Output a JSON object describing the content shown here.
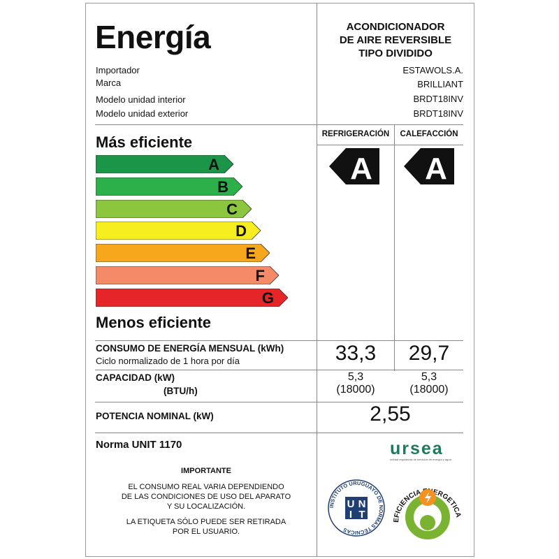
{
  "header": {
    "title": "Energía",
    "product": [
      "ACONDICIONADOR",
      "DE AIRE REVERSIBLE",
      "TIPO DIVIDIDO"
    ]
  },
  "info": [
    {
      "label": "Importador",
      "value": "ESTAWOLS.A."
    },
    {
      "label": "Marca",
      "value": "BRILLIANT"
    },
    {
      "label": "Modelo unidad interior",
      "value": "BRDT18INV"
    },
    {
      "label": "Modelo unidad exterior",
      "value": "BRDT18INV"
    }
  ],
  "scale": {
    "top_label": "Más eficiente",
    "bottom_label": "Menos eficiente",
    "classes": [
      {
        "letter": "A",
        "color": "#1b9547"
      },
      {
        "letter": "B",
        "color": "#2bb04a"
      },
      {
        "letter": "C",
        "color": "#8cc63f"
      },
      {
        "letter": "D",
        "color": "#f6ee1f"
      },
      {
        "letter": "E",
        "color": "#f6a71c"
      },
      {
        "letter": "F",
        "color": "#f48a68"
      },
      {
        "letter": "G",
        "color": "#e52527"
      }
    ]
  },
  "columns": {
    "cooling": "REFRIGERACIÓN",
    "heating": "CALEFACCIÓN"
  },
  "rating": {
    "cooling": "A",
    "heating": "A"
  },
  "consumption": {
    "label": "CONSUMO DE ENERGÍA MENSUAL  (kWh)",
    "sublabel": "Ciclo normalizado de 1 hora por día",
    "cooling": "33,3",
    "heating": "29,7"
  },
  "capacity": {
    "label": "CAPACIDAD   (kW)",
    "sublabel": "(BTU/h)",
    "cooling_kw": "5,3",
    "cooling_btu": "(18000)",
    "heating_kw": "5,3",
    "heating_btu": "(18000)"
  },
  "power": {
    "label": "POTENCIA NOMINAL  (kW)",
    "value": "2,55"
  },
  "norm": "Norma UNIT 1170",
  "important": {
    "title": "IMPORTANTE",
    "lines1": [
      "EL CONSUMO REAL VARIA DEPENDIENDO",
      "DE LAS CONDICIONES DE  USO DEL APARATO",
      "Y SU LOCALIZACIÓN."
    ],
    "lines2": [
      "LA ETIQUETA SÓLO PUEDE SER RETIRADA",
      "POR EL USUARIO."
    ]
  },
  "logos": {
    "ursea": "ursea",
    "ursea_sub": "unidad reguladora de servicios de energía y agua",
    "unit_ring": "INSTITUTO URUGUAYO DE NORMAS TÉCNICAS",
    "unit": [
      "U",
      "N",
      "I",
      "T"
    ],
    "efficiency": "EFICIENCIA ENERGETICA"
  }
}
